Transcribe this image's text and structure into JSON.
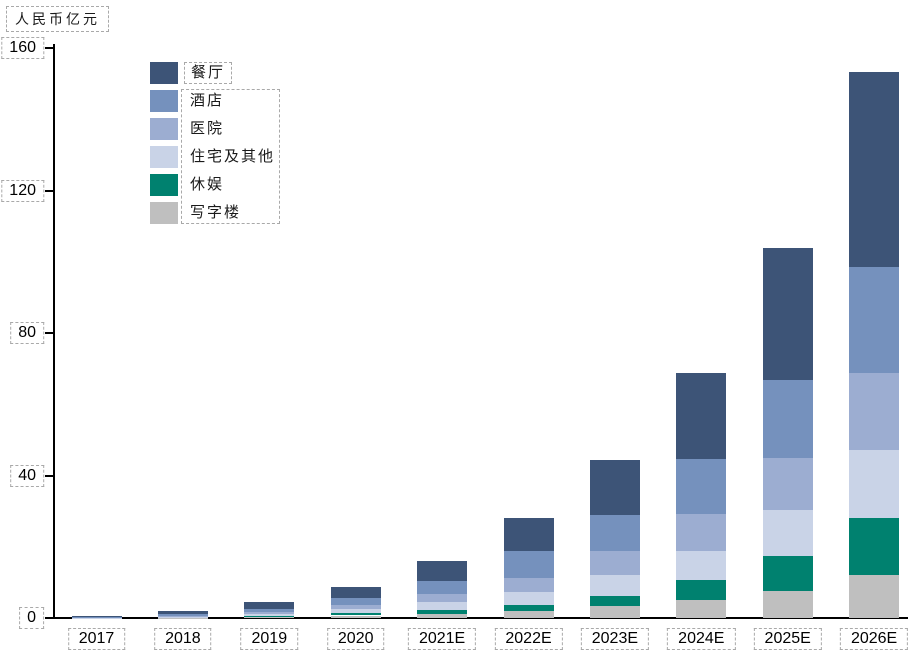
{
  "unit_label": "人民币亿元",
  "colors": {
    "axis": "#000000",
    "annotation_dash": "#a9a9a9",
    "background": "#ffffff"
  },
  "chart_data": {
    "type": "bar",
    "stacked": true,
    "title": "",
    "ylabel": "人民币亿元",
    "xlabel": "",
    "ylim": [
      0,
      160
    ],
    "yticks": [
      0,
      40,
      80,
      120,
      160
    ],
    "grid": false,
    "legend_position": "top-left",
    "stack_order_note": "series listed top-of-stack first; stacking bottom-to-top is reverse order",
    "categories": [
      "2017",
      "2018",
      "2019",
      "2020",
      "2021E",
      "2022E",
      "2023E",
      "2024E",
      "2025E",
      "2026E"
    ],
    "series": [
      {
        "name": "餐厅",
        "color": "#3d5477",
        "values": [
          0.3,
          0.9,
          1.9,
          3.1,
          5.6,
          9.5,
          15.4,
          24.2,
          37.3,
          54.8
        ]
      },
      {
        "name": "酒店",
        "color": "#7591bd",
        "values": [
          0.12,
          0.4,
          0.9,
          1.9,
          3.6,
          7.5,
          10.1,
          15.4,
          21.9,
          29.7
        ]
      },
      {
        "name": "医院",
        "color": "#9cadd1",
        "values": [
          0.08,
          0.25,
          0.6,
          1.2,
          2.4,
          4.0,
          6.7,
          10.3,
          14.5,
          21.6
        ]
      },
      {
        "name": "住宅及其他",
        "color": "#c9d3e7",
        "values": [
          0.05,
          0.15,
          0.5,
          1.0,
          2.1,
          3.5,
          5.9,
          8.1,
          13.0,
          19.1
        ]
      },
      {
        "name": "休娱",
        "color": "#00816f",
        "values": [
          0.03,
          0.1,
          0.25,
          0.7,
          1.2,
          1.8,
          2.9,
          5.8,
          9.8,
          15.9
        ]
      },
      {
        "name": "写字楼",
        "color": "#bfbfbf",
        "values": [
          0.03,
          0.1,
          0.25,
          0.7,
          1.1,
          1.9,
          3.3,
          5.0,
          7.5,
          12.1
        ]
      }
    ],
    "totals": [
      0.61,
      1.9,
      4.4,
      8.6,
      16.0,
      28.2,
      44.3,
      68.8,
      104.0,
      153.2
    ]
  }
}
